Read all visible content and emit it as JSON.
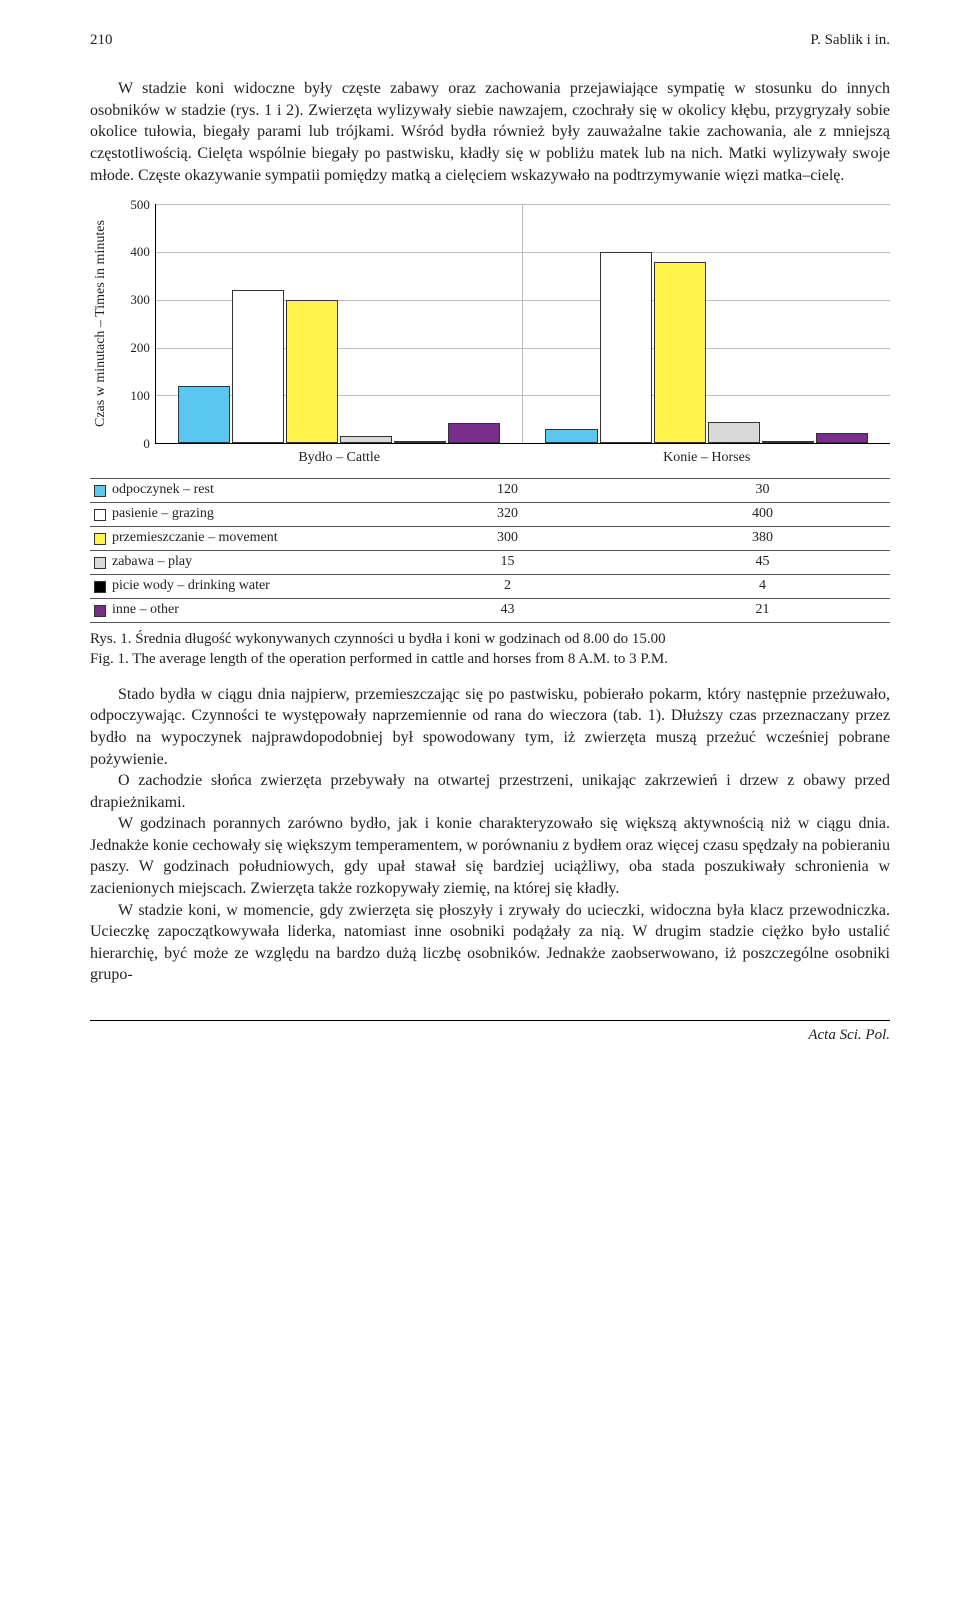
{
  "header": {
    "page_number": "210",
    "running_head": "P. Sablik i in."
  },
  "paragraphs": {
    "p1": "W stadzie koni widoczne były częste zabawy oraz zachowania przejawiające sympatię w stosunku do innych osobników w stadzie (rys. 1 i 2). Zwierzęta wylizywały siebie nawzajem, czochrały się w okolicy kłębu, przygryzały sobie okolice tułowia, biegały parami lub trójkami. Wśród bydła również były zauważalne takie zachowania, ale z mniejszą częstotliwością. Cielęta wspólnie biegały po pastwisku, kładły się w pobliżu matek lub na nich. Matki wylizywały swoje młode. Częste okazywanie sympatii pomiędzy matką a cielęciem wskazywało na podtrzymywanie więzi matka–cielę.",
    "p2": "Stado bydła w ciągu dnia najpierw, przemieszczając się po pastwisku, pobierało pokarm, który następnie przeżuwało, odpoczywając. Czynności te występowały naprzemiennie od rana do wieczora (tab. 1). Dłuższy czas przeznaczany przez bydło na wypoczynek najprawdopodobniej był spowodowany tym, iż zwierzęta muszą przeżuć wcześniej pobrane pożywienie.",
    "p3": "O zachodzie słońca zwierzęta przebywały na otwartej przestrzeni, unikając zakrzewień i drzew z obawy przed drapieżnikami.",
    "p4": "W godzinach porannych zarówno bydło, jak i konie charakteryzowało się większą aktywnością niż w ciągu dnia. Jednakże konie cechowały się większym temperamentem, w porównaniu z bydłem oraz więcej czasu spędzały na pobieraniu paszy. W godzinach południowych, gdy upał stawał się bardziej uciążliwy, oba stada poszukiwały schronienia w zacienionych miejscach. Zwierzęta także rozkopywały ziemię, na której się kładły.",
    "p5": "W stadzie koni, w momencie, gdy zwierzęta się płoszyły i zrywały do ucieczki, widoczna była klacz przewodniczka. Ucieczkę zapoczątkowywała liderka, natomiast inne osobniki podążały za nią. W drugim stadzie ciężko było ustalić hierarchię, być może ze względu na bardzo dużą liczbę osobników. Jednakże zaobserwowano, iż poszczególne osobniki grupo-"
  },
  "chart": {
    "type": "bar",
    "y_label": "Czas w minutach – Times in minutes",
    "ylim": [
      0,
      500
    ],
    "ytick_step": 100,
    "yticks": [
      "0",
      "100",
      "200",
      "300",
      "400",
      "500"
    ],
    "grid_color": "#bdbdbd",
    "background_color": "#ffffff",
    "categories": [
      "Bydło – Cattle",
      "Konie – Horses"
    ],
    "series": [
      {
        "label": "odpoczynek – rest",
        "color": "#59c7ef",
        "values": [
          120,
          30
        ],
        "display": [
          "120",
          "30"
        ]
      },
      {
        "label": "pasienie – grazing",
        "color": "#ffffff",
        "values": [
          320,
          400
        ],
        "display": [
          "320",
          "400"
        ]
      },
      {
        "label": "przemieszczanie – movement",
        "color": "#fff24a",
        "values": [
          300,
          380
        ],
        "display": [
          "300",
          "380"
        ]
      },
      {
        "label": "zabawa – play",
        "color": "#d9d9d9",
        "values": [
          15,
          45
        ],
        "display": [
          "15",
          "45"
        ]
      },
      {
        "label": "picie wody – drinking water",
        "color": "#000000",
        "values": [
          2,
          4
        ],
        "display": [
          "2",
          "4"
        ]
      },
      {
        "label": "inne – other",
        "color": "#7a2e8c",
        "values": [
          43,
          21
        ],
        "display": [
          "43",
          "21"
        ]
      }
    ],
    "caption_pl": "Rys. 1. Średnia długość wykonywanych czynności u bydła i koni w godzinach od 8.00 do 15.00",
    "caption_en": "Fig. 1. The average length of the operation performed in cattle and horses from 8 A.M. to 3 P.M."
  },
  "footer": {
    "journal": "Acta Sci. Pol."
  }
}
